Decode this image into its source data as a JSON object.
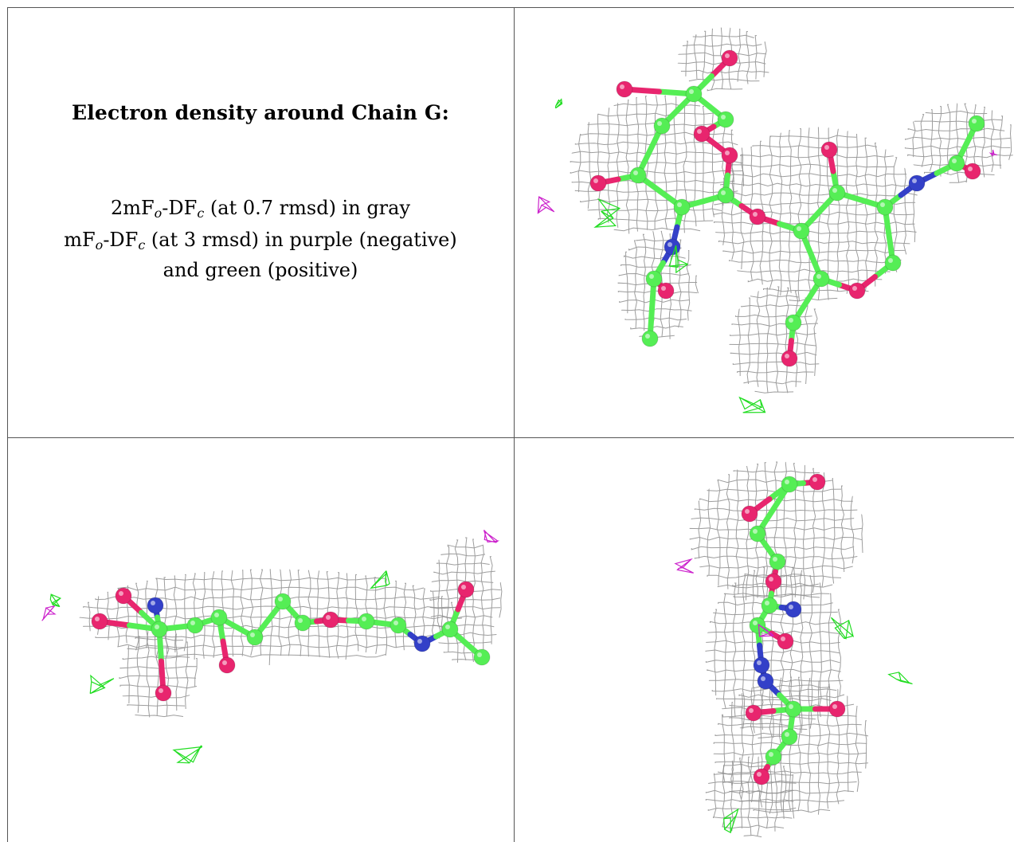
{
  "caption": {
    "title": "Electron density around Chain G:",
    "line1": {
      "prefix": "2mF",
      "sub1": "o",
      "mid": "-DF",
      "sub2": "c",
      "suffix": " (at 0.7 rmsd) in gray"
    },
    "line2": {
      "prefix": "mF",
      "sub1": "o",
      "mid": "-DF",
      "sub2": "c",
      "suffix": " (at 3 rmsd) in purple (negative)"
    },
    "line3": "and green (positive)"
  },
  "colors": {
    "density_2fofc": "#8c8c8c",
    "negative_difference": "#cc22cc",
    "positive_difference": "#22dd22",
    "carbon": "#55ee55",
    "oxygen": "#e8256e",
    "nitrogen": "#3340c8",
    "border": "#555555"
  },
  "panels": [
    {
      "view": "top-right"
    },
    {
      "view": "bottom-left"
    },
    {
      "view": "bottom-right"
    }
  ]
}
